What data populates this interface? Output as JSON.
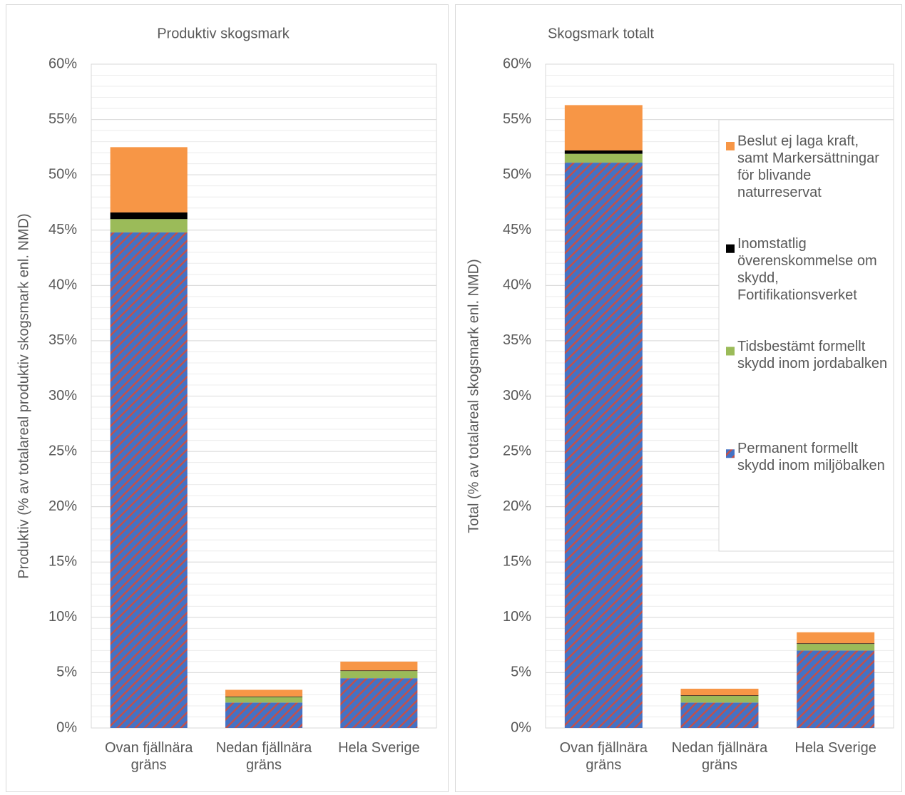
{
  "chart_data": [
    {
      "type": "bar",
      "stacked": true,
      "title": "Produktiv skogsmark",
      "ylabel": "Produktiv (% av totalareal produktiv skogsmark enl. NMD)",
      "categories": [
        "Ovan fjällnära gräns",
        "Nedan fjällnära gräns",
        "Hela Sverige"
      ],
      "series": [
        {
          "name": "Permanent formellt skydd inom miljöbalken",
          "color": "#4472c4",
          "hatch_color": "#c0504d",
          "values": [
            44.8,
            2.3,
            4.5
          ]
        },
        {
          "name": "Tidsbestämt formellt skydd inom jordabalken",
          "color": "#9bbb59",
          "values": [
            1.2,
            0.5,
            0.65
          ]
        },
        {
          "name": "Inomstatlig överenskommelse om skydd, Fortifikationsverket",
          "color": "#000000",
          "values": [
            0.6,
            0.05,
            0.05
          ]
        },
        {
          "name": "Beslut ej laga kraft, samt Markersättningar för blivande naturreservat",
          "color": "#f79646",
          "values": [
            5.9,
            0.6,
            0.8
          ]
        }
      ],
      "ylim": [
        0,
        60
      ],
      "yticks": [
        {
          "value": 0,
          "label": "0%"
        },
        {
          "value": 5,
          "label": "5%"
        },
        {
          "value": 10,
          "label": "10%"
        },
        {
          "value": 15,
          "label": "15%"
        },
        {
          "value": 20,
          "label": "20%"
        },
        {
          "value": 25,
          "label": "25%"
        },
        {
          "value": 30,
          "label": "30%"
        },
        {
          "value": 35,
          "label": "35%"
        },
        {
          "value": 40,
          "label": "40%"
        },
        {
          "value": 45,
          "label": "45%"
        },
        {
          "value": 50,
          "label": "50%"
        },
        {
          "value": 55,
          "label": "55%"
        },
        {
          "value": 60,
          "label": "60%"
        }
      ],
      "grid": true,
      "minor_grid_step": 1,
      "legend": null
    },
    {
      "type": "bar",
      "stacked": true,
      "title": "Skogsmark totalt",
      "ylabel": "Total (% av totalareal skogsmark enl. NMD)",
      "categories": [
        "Ovan fjällnära gräns",
        "Nedan fjällnära gräns",
        "Hela Sverige"
      ],
      "series": [
        {
          "name": "Permanent formellt skydd inom miljöbalken",
          "color": "#4472c4",
          "hatch_color": "#c0504d",
          "values": [
            51.1,
            2.3,
            7.0
          ]
        },
        {
          "name": "Tidsbestämt formellt skydd inom jordabalken",
          "color": "#9bbb59",
          "values": [
            0.8,
            0.6,
            0.6
          ]
        },
        {
          "name": "Inomstatlig överenskommelse om skydd, Fortifikationsverket",
          "color": "#000000",
          "values": [
            0.3,
            0.05,
            0.05
          ]
        },
        {
          "name": "Beslut ej laga kraft, samt Markersättningar för blivande naturreservat",
          "color": "#f79646",
          "values": [
            4.1,
            0.6,
            1.0
          ]
        }
      ],
      "ylim": [
        0,
        60
      ],
      "yticks": [
        {
          "value": 0,
          "label": "0%"
        },
        {
          "value": 5,
          "label": "5%"
        },
        {
          "value": 10,
          "label": "10%"
        },
        {
          "value": 15,
          "label": "15%"
        },
        {
          "value": 20,
          "label": "20%"
        },
        {
          "value": 25,
          "label": "25%"
        },
        {
          "value": 30,
          "label": "30%"
        },
        {
          "value": 35,
          "label": "35%"
        },
        {
          "value": 40,
          "label": "40%"
        },
        {
          "value": 45,
          "label": "45%"
        },
        {
          "value": 50,
          "label": "50%"
        },
        {
          "value": 55,
          "label": "55%"
        },
        {
          "value": 60,
          "label": "60%"
        }
      ],
      "grid": true,
      "minor_grid_step": 1,
      "legend": "right"
    }
  ]
}
